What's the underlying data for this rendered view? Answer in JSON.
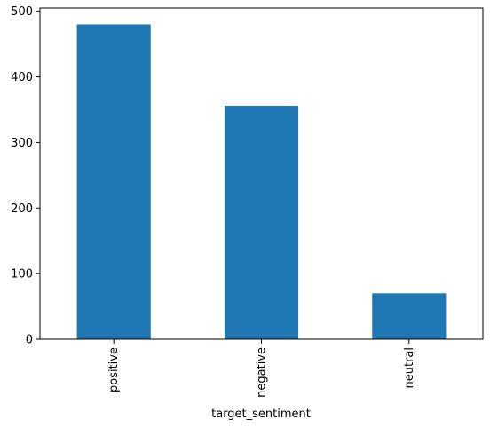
{
  "chart_data": {
    "type": "bar",
    "categories": [
      "positive",
      "negative",
      "neutral"
    ],
    "values": [
      480,
      356,
      70
    ],
    "title": "",
    "xlabel": "target_sentiment",
    "ylabel": "",
    "ylim": [
      0,
      505
    ],
    "yticks": [
      0,
      100,
      200,
      300,
      400,
      500
    ],
    "grid": false,
    "legend": "none",
    "bar_color": "#1f77b4",
    "x_tick_rotation": "vertical"
  }
}
